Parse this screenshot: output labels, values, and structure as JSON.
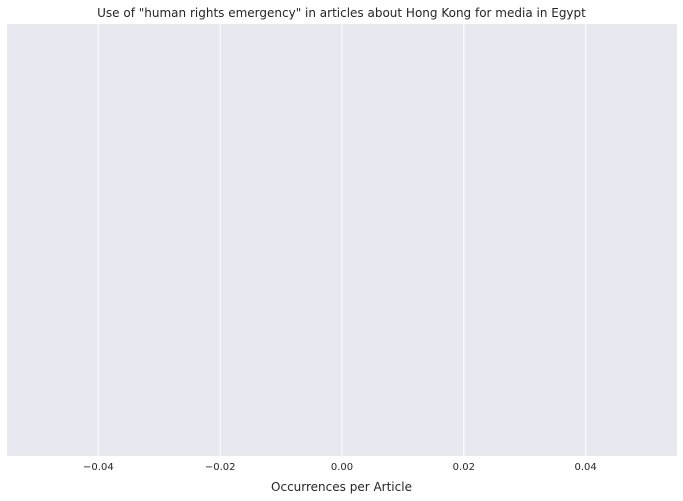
{
  "chart_data": {
    "type": "bar",
    "orientation": "horizontal",
    "title": "Use of \"human rights emergency\" in articles about Hong Kong for media in Egypt",
    "xlabel": "Occurrences per Article",
    "ylabel": "",
    "categories": [],
    "values": [],
    "xlim": [
      -0.055,
      0.055
    ],
    "x_ticks": [
      -0.04,
      -0.02,
      0.0,
      0.02,
      0.04
    ],
    "x_tick_labels": [
      "−0.04",
      "−0.02",
      "0.00",
      "0.02",
      "0.04"
    ],
    "grid": true,
    "colors": {
      "plot_background": "#e8e8f1",
      "grid": "#ffffff",
      "text": "#262626"
    }
  }
}
